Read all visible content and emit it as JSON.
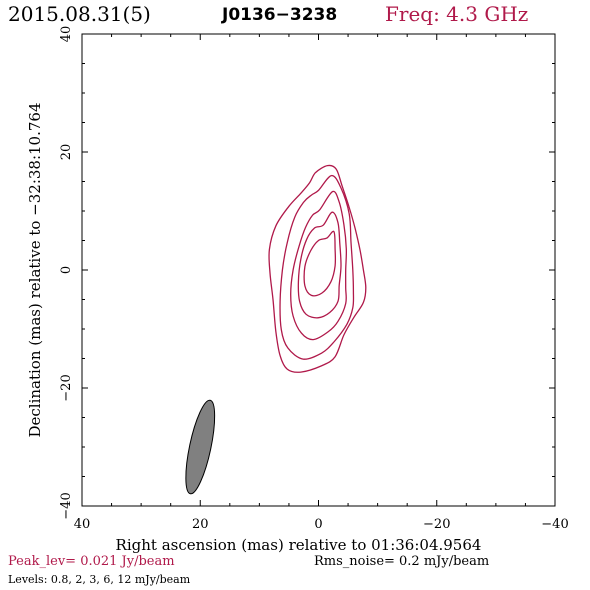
{
  "header": {
    "date": "2015.08.31(5)",
    "source": "J0136−3238",
    "freq": "Freq: 4.3 GHz"
  },
  "footer": {
    "peak": "Peak_lev=  0.021 Jy/beam",
    "rms": "Rms_noise=   0.2 mJy/beam",
    "levels": "Levels: 0.8,    2,    3,    6,   12 mJy/beam"
  },
  "colors": {
    "contour": "#b0194a",
    "beam_fill": "#808080",
    "header_freq": "#b0194a"
  },
  "chart_data": {
    "type": "contour",
    "xlabel": "Right ascension (mas) relative to 01:36:04.9564",
    "ylabel": "Declination (mas) relative to −32:38:10.764",
    "xlim": [
      40,
      -40
    ],
    "ylim": [
      -40,
      40
    ],
    "xticks": [
      40,
      20,
      0,
      -20,
      -40
    ],
    "yticks": [
      -40,
      -20,
      0,
      20,
      40
    ],
    "xtick_labels": [
      "40",
      "20",
      "0",
      "−20",
      "−40"
    ],
    "ytick_labels": [
      "−40",
      "−20",
      "0",
      "20",
      "40"
    ],
    "contour_levels_mJy": [
      0.8,
      2,
      3,
      6,
      12
    ],
    "contours": [
      {
        "level": 0.8,
        "points": [
          [
            0.5,
            16.5
          ],
          [
            -1.5,
            17.7
          ],
          [
            -3,
            17.1
          ],
          [
            -4,
            14.2
          ],
          [
            -5.2,
            10.6
          ],
          [
            -6.2,
            7
          ],
          [
            -7,
            3.5
          ],
          [
            -7.6,
            0
          ],
          [
            -8,
            -3
          ],
          [
            -7.6,
            -5.5
          ],
          [
            -6,
            -8
          ],
          [
            -4.3,
            -11
          ],
          [
            -2.8,
            -14.7
          ],
          [
            -0.6,
            -16.2
          ],
          [
            3,
            -17.3
          ],
          [
            5.3,
            -16.8
          ],
          [
            6.5,
            -14.5
          ],
          [
            7.2,
            -10.5
          ],
          [
            7.7,
            -5
          ],
          [
            8.2,
            -0.5
          ],
          [
            8.3,
            3.5
          ],
          [
            7.2,
            7.5
          ],
          [
            5,
            10.8
          ],
          [
            3,
            13
          ],
          [
            1.5,
            14.8
          ]
        ]
      },
      {
        "level": 2,
        "points": [
          [
            0,
            13.5
          ],
          [
            -2.2,
            16
          ],
          [
            -3.8,
            13.9
          ],
          [
            -5.2,
            9.5
          ],
          [
            -5.5,
            4.7
          ],
          [
            -5.8,
            0
          ],
          [
            -5.9,
            -3.6
          ],
          [
            -5.8,
            -6.4
          ],
          [
            -4.8,
            -9.2
          ],
          [
            -2.6,
            -12.2
          ],
          [
            -0.5,
            -14.1
          ],
          [
            2.6,
            -15.1
          ],
          [
            5.2,
            -13.2
          ],
          [
            6.3,
            -10.1
          ],
          [
            6.5,
            -5.3
          ],
          [
            6.1,
            0
          ],
          [
            5.3,
            4.6
          ],
          [
            4,
            9
          ],
          [
            2.5,
            11.5
          ],
          [
            1.2,
            12.7
          ]
        ]
      },
      {
        "level": 3,
        "points": [
          [
            -0.2,
            10.2
          ],
          [
            -2.4,
            13.3
          ],
          [
            -3.5,
            11.5
          ],
          [
            -4.3,
            7.7
          ],
          [
            -4.7,
            3.6
          ],
          [
            -4.6,
            0
          ],
          [
            -4.6,
            -3
          ],
          [
            -4.6,
            -5.7
          ],
          [
            -3.3,
            -8.7
          ],
          [
            -1.6,
            -10.5
          ],
          [
            0.9,
            -11.8
          ],
          [
            2.9,
            -10.7
          ],
          [
            4.3,
            -7.8
          ],
          [
            4.7,
            -4.1
          ],
          [
            4.3,
            0
          ],
          [
            3.3,
            4
          ],
          [
            2.2,
            7.2
          ],
          [
            1,
            9.3
          ]
        ]
      },
      {
        "level": 6,
        "points": [
          [
            -0.8,
            7.6
          ],
          [
            -2.3,
            9.8
          ],
          [
            -3.3,
            8
          ],
          [
            -3.6,
            4.5
          ],
          [
            -3.8,
            0.7
          ],
          [
            -3.5,
            -2.6
          ],
          [
            -3.3,
            -5.3
          ],
          [
            -1.9,
            -7.2
          ],
          [
            0.1,
            -8.1
          ],
          [
            2.1,
            -7.5
          ],
          [
            3.2,
            -5.3
          ],
          [
            3.4,
            -2
          ],
          [
            3,
            1.8
          ],
          [
            2,
            5.2
          ],
          [
            0.7,
            7.1
          ]
        ]
      },
      {
        "level": 12,
        "points": [
          [
            -1.4,
            5.4
          ],
          [
            -2.6,
            6.5
          ],
          [
            -2.8,
            3.5
          ],
          [
            -2.8,
            0.7
          ],
          [
            -2.1,
            -2
          ],
          [
            -0.6,
            -3.9
          ],
          [
            1.2,
            -4.3
          ],
          [
            2.3,
            -2.7
          ],
          [
            2.3,
            0.6
          ],
          [
            1.3,
            3.3
          ],
          [
            0,
            5
          ]
        ]
      }
    ],
    "beam": {
      "center": [
        20,
        -30
      ],
      "major_mas": 16.2,
      "minor_mas": 3.6,
      "pa_deg": 12
    }
  }
}
